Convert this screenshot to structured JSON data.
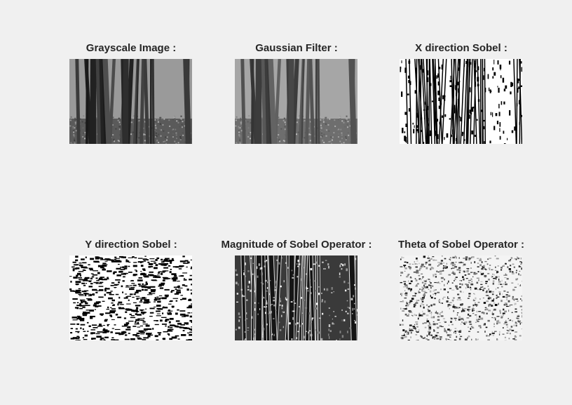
{
  "figure": {
    "background": "#f0f0f0",
    "panels": [
      {
        "title": "Grayscale Image :",
        "image": "grayscale-forest",
        "style": "gray"
      },
      {
        "title": "Gaussian Filter :",
        "image": "blurred-forest",
        "style": "blur"
      },
      {
        "title": "X direction Sobel :",
        "image": "x-sobel-edges",
        "style": "xsobel"
      },
      {
        "title": "Y direction Sobel :",
        "image": "y-sobel-edges",
        "style": "ysobel"
      },
      {
        "title": "Magnitude of Sobel Operator :",
        "image": "sobel-magnitude",
        "style": "mag"
      },
      {
        "title": "Theta of Sobel Operator :",
        "image": "sobel-theta",
        "style": "theta"
      }
    ]
  }
}
